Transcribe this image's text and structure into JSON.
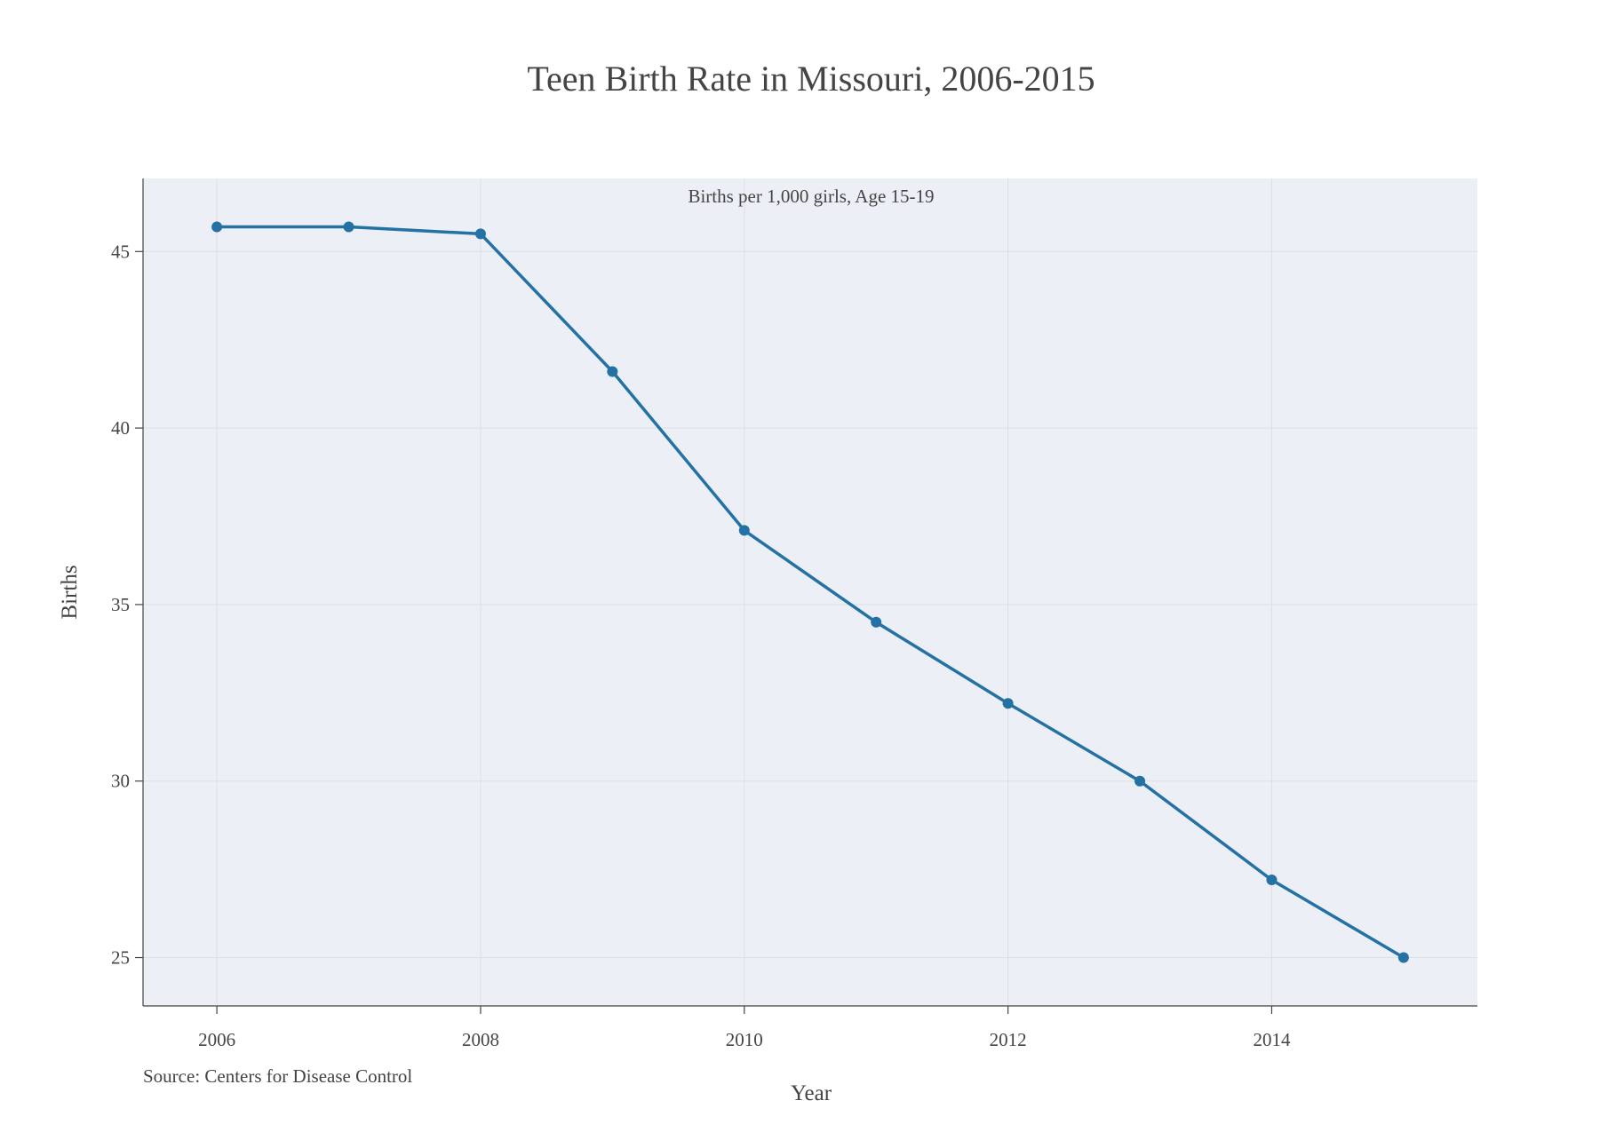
{
  "chart_data": {
    "type": "line",
    "title": "Teen Birth Rate in Missouri, 2006-2015",
    "xlabel": "Year",
    "ylabel": "Births",
    "x": [
      2006,
      2007,
      2008,
      2009,
      2010,
      2011,
      2012,
      2013,
      2014,
      2015
    ],
    "series": [
      {
        "values": [
          45.7,
          45.7,
          45.5,
          41.6,
          37.1,
          34.5,
          32.2,
          30.0,
          27.2,
          25.0
        ]
      }
    ],
    "xlim": [
      2005.44,
      2015.56
    ],
    "ylim": [
      23.63,
      47.07
    ],
    "x_ticks": [
      2006,
      2008,
      2010,
      2012,
      2014
    ],
    "y_ticks": [
      25,
      30,
      35,
      40,
      45
    ],
    "grid": true,
    "annotations": {
      "subtitle": "Births per 1,000 girls, Age 15-19",
      "source": "Source: Centers for Disease Control"
    },
    "colors": {
      "line": "#2471a3",
      "plot_background": "#eceff5",
      "grid": "#dde0e6",
      "axis": "#444444"
    }
  }
}
